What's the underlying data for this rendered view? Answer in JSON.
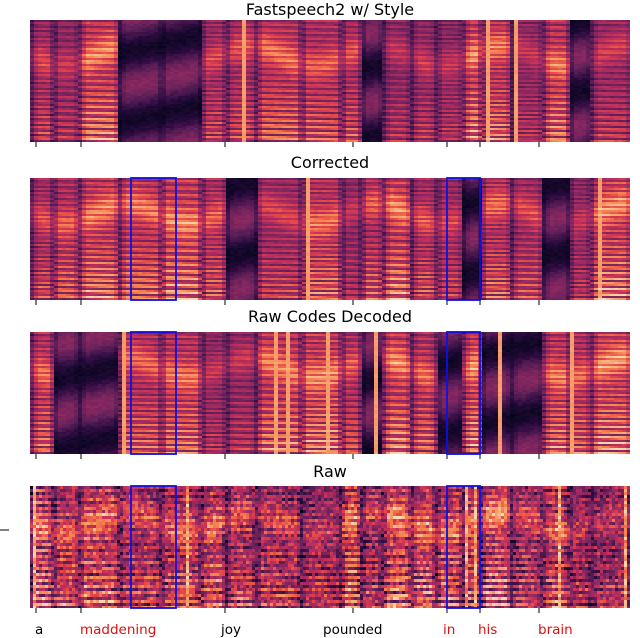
{
  "figure": {
    "panels": [
      {
        "title": "Fastspeech2 w/ Style",
        "kind": "smooth",
        "seed": 11,
        "boxes": false
      },
      {
        "title": "Corrected",
        "kind": "smooth",
        "seed": 23,
        "boxes": true
      },
      {
        "title": "Raw Codes Decoded",
        "kind": "smooth",
        "seed": 37,
        "boxes": true
      },
      {
        "title": "Raw",
        "kind": "noisy",
        "seed": 51,
        "boxes": true
      }
    ],
    "words": [
      {
        "text": "a",
        "highlighted": false
      },
      {
        "text": "maddening",
        "highlighted": true
      },
      {
        "text": "joy",
        "highlighted": false
      },
      {
        "text": "pounded",
        "highlighted": false
      },
      {
        "text": "in",
        "highlighted": true
      },
      {
        "text": "his",
        "highlighted": true
      },
      {
        "text": "brain",
        "highlighted": true
      }
    ],
    "colors": {
      "highlight_word": "#e01010",
      "normal_word": "#000000",
      "box": "#1010e0",
      "colormap": [
        "#03051a",
        "#2b0b3f",
        "#5c1e57",
        "#8e2961",
        "#c02e5c",
        "#e54a47",
        "#f47f4e",
        "#f6a571",
        "#f9d6b4"
      ]
    }
  }
}
